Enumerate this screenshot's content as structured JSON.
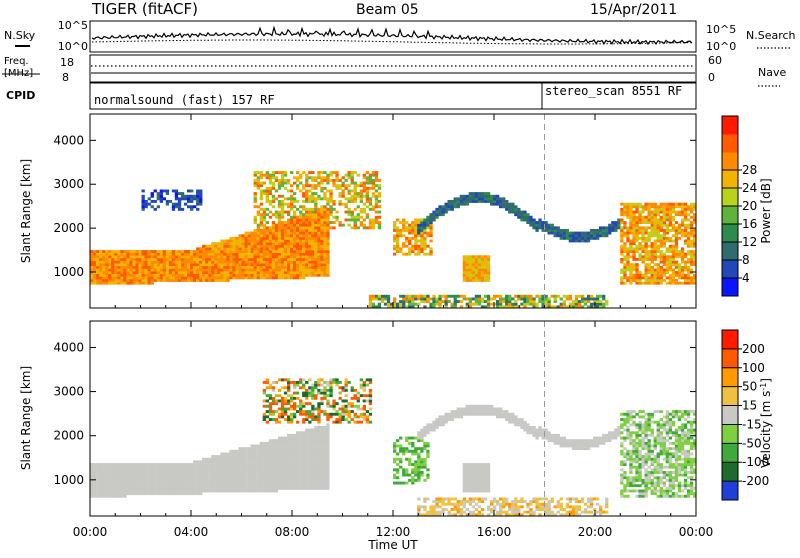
{
  "header": {
    "radar": "TIGER (fitACF)",
    "beam": "Beam 05",
    "date": "15/Apr/2011"
  },
  "noise_panel": {
    "left_label": "N.Sky",
    "right_label": "N.Search",
    "left_ticks": [
      "10^5",
      "10^0"
    ],
    "right_ticks": [
      "10^5",
      "10^0"
    ]
  },
  "freq_panel": {
    "left_label_1": "Freq.",
    "left_label_2": "[MHz]",
    "left_ticks": [
      "18",
      "8"
    ],
    "right_label": "Nave",
    "right_ticks": [
      "60",
      "0"
    ]
  },
  "cpid_panel": {
    "label": "CPID",
    "mode_1": "normalsound (fast) 157 RF",
    "mode_2": "stereo_scan 8551 RF"
  },
  "chart_data": [
    {
      "type": "heatmap",
      "title": "",
      "xlabel": "Time UT",
      "ylabel": "Slant Range [km]",
      "x_ticks": [
        "00:00",
        "04:00",
        "08:00",
        "12:00",
        "16:00",
        "20:00",
        "00:00"
      ],
      "xlim_hours": [
        0,
        24
      ],
      "y_ticks": [
        1000,
        2000,
        3000,
        4000
      ],
      "ylim": [
        180,
        4600
      ],
      "colorbar_label": "Power [dB]",
      "colorbar_ticks": [
        4,
        8,
        12,
        16,
        20,
        24,
        28
      ],
      "colorbar_colors": [
        "#0a14ff",
        "#2347b8",
        "#2f6b6f",
        "#2e8b4e",
        "#5fb33a",
        "#b9d21e",
        "#f2b400",
        "#ff8a00",
        "#ff5a00",
        "#ff1a00"
      ],
      "mode_change_hour": 18.0
    },
    {
      "type": "heatmap",
      "title": "",
      "xlabel": "Time UT",
      "ylabel": "Slant Range [km]",
      "x_ticks": [
        "00:00",
        "04:00",
        "08:00",
        "12:00",
        "16:00",
        "20:00",
        "00:00"
      ],
      "xlim_hours": [
        0,
        24
      ],
      "y_ticks": [
        1000,
        2000,
        3000,
        4000
      ],
      "ylim": [
        180,
        4600
      ],
      "colorbar_label": "Velocity [m s^-1]",
      "colorbar_ticks": [
        200,
        100,
        50,
        15,
        -15,
        -50,
        -100,
        -200
      ],
      "colorbar_colors": [
        "#1f3fd6",
        "#1f6b2e",
        "#3fa93b",
        "#7fd040",
        "#c8c8c4",
        "#f0c040",
        "#ff9a00",
        "#ff5a00",
        "#ff1a00"
      ],
      "mode_change_hour": 18.0
    }
  ]
}
